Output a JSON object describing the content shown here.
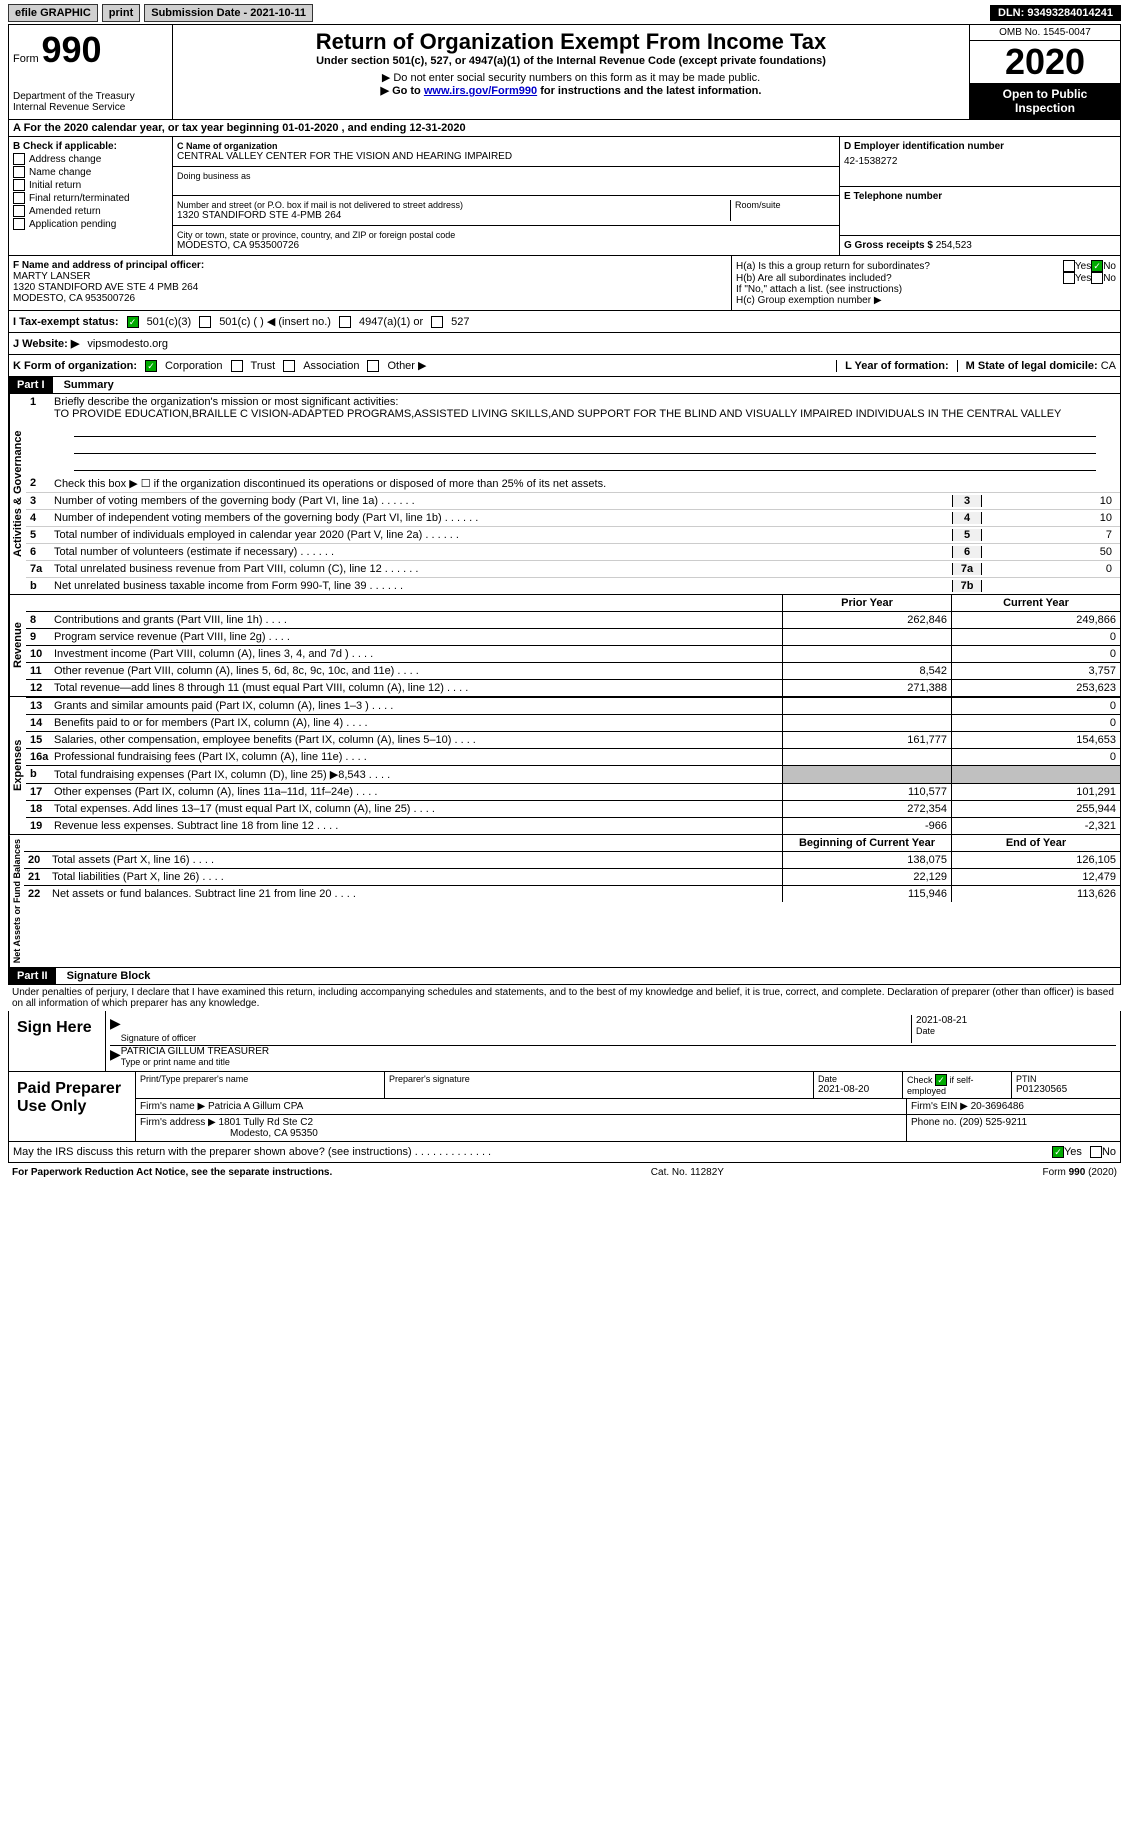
{
  "topbar": {
    "efile": "efile GRAPHIC",
    "print": "print",
    "submission_label": "Submission Date - ",
    "submission_date": "2021-10-11",
    "dln_label": "DLN: ",
    "dln": "93493284014241"
  },
  "header": {
    "form_word": "Form",
    "form_num": "990",
    "dept": "Department of the Treasury Internal Revenue Service",
    "title": "Return of Organization Exempt From Income Tax",
    "subtitle": "Under section 501(c), 527, or 4947(a)(1) of the Internal Revenue Code (except private foundations)",
    "note1": "▶ Do not enter social security numbers on this form as it may be made public.",
    "note2_pre": "▶ Go to ",
    "note2_link": "www.irs.gov/Form990",
    "note2_post": " for instructions and the latest information.",
    "omb": "OMB No. 1545-0047",
    "year": "2020",
    "open": "Open to Public Inspection"
  },
  "period": "A For the 2020 calendar year, or tax year beginning 01-01-2020   , and ending 12-31-2020",
  "sectionB": {
    "b_label": "B Check if applicable:",
    "items": [
      "Address change",
      "Name change",
      "Initial return",
      "Final return/terminated",
      "Amended return",
      "Application pending"
    ],
    "c_label": "C Name of organization",
    "org_name": "CENTRAL VALLEY CENTER FOR THE VISION AND HEARING IMPAIRED",
    "dba_label": "Doing business as",
    "street_label": "Number and street (or P.O. box if mail is not delivered to street address)",
    "street": "1320 STANDIFORD STE 4-PMB 264",
    "room_label": "Room/suite",
    "city_label": "City or town, state or province, country, and ZIP or foreign postal code",
    "city": "MODESTO, CA  953500726",
    "d_label": "D Employer identification number",
    "ein": "42-1538272",
    "e_label": "E Telephone number",
    "g_label": "G Gross receipts $ ",
    "g_value": "254,523"
  },
  "fgh": {
    "f_label": "F Name and address of principal officer:",
    "officer_name": "MARTY LANSER",
    "officer_addr1": "1320 STANDIFORD AVE STE 4 PMB 264",
    "officer_addr2": "MODESTO, CA  953500726",
    "ha_label": "H(a)  Is this a group return for subordinates?",
    "hb_label": "H(b)  Are all subordinates included?",
    "hb_note": "If \"No,\" attach a list. (see instructions)",
    "hc_label": "H(c)  Group exemption number ▶",
    "yes": "Yes",
    "no": "No"
  },
  "tax_status": {
    "i_label": "I   Tax-exempt status:",
    "s501c3": "501(c)(3)",
    "s501c": "501(c) (   ) ◀ (insert no.)",
    "s4947": "4947(a)(1) or",
    "s527": "527"
  },
  "website": {
    "j_label": "J   Website: ▶",
    "url": "vipsmodesto.org"
  },
  "form_org": {
    "k_label": "K Form of organization:",
    "corp": "Corporation",
    "trust": "Trust",
    "assoc": "Association",
    "other": "Other ▶",
    "l_label": "L Year of formation:",
    "m_label": "M State of legal domicile: ",
    "m_val": "CA"
  },
  "part1": {
    "header": "Part I",
    "title": "Summary",
    "line1_label": "Briefly describe the organization's mission or most significant activities:",
    "line1_text": "TO PROVIDE EDUCATION,BRAILLE C VISION-ADAPTED PROGRAMS,ASSISTED LIVING SKILLS,AND SUPPORT FOR THE BLIND AND VISUALLY IMPAIRED INDIVIDUALS IN THE CENTRAL VALLEY",
    "line2": "Check this box ▶ ☐ if the organization discontinued its operations or disposed of more than 25% of its net assets.",
    "rows_gov": [
      {
        "n": "3",
        "t": "Number of voting members of the governing body (Part VI, line 1a)",
        "box": "3",
        "v": "10"
      },
      {
        "n": "4",
        "t": "Number of independent voting members of the governing body (Part VI, line 1b)",
        "box": "4",
        "v": "10"
      },
      {
        "n": "5",
        "t": "Total number of individuals employed in calendar year 2020 (Part V, line 2a)",
        "box": "5",
        "v": "7"
      },
      {
        "n": "6",
        "t": "Total number of volunteers (estimate if necessary)",
        "box": "6",
        "v": "50"
      },
      {
        "n": "7a",
        "t": "Total unrelated business revenue from Part VIII, column (C), line 12",
        "box": "7a",
        "v": "0"
      },
      {
        "n": "b",
        "t": "Net unrelated business taxable income from Form 990-T, line 39",
        "box": "7b",
        "v": ""
      }
    ],
    "prior_label": "Prior Year",
    "current_label": "Current Year",
    "boy_label": "Beginning of Current Year",
    "eoy_label": "End of Year",
    "revenue": [
      {
        "n": "8",
        "t": "Contributions and grants (Part VIII, line 1h)",
        "p": "262,846",
        "c": "249,866"
      },
      {
        "n": "9",
        "t": "Program service revenue (Part VIII, line 2g)",
        "p": "",
        "c": "0"
      },
      {
        "n": "10",
        "t": "Investment income (Part VIII, column (A), lines 3, 4, and 7d )",
        "p": "",
        "c": "0"
      },
      {
        "n": "11",
        "t": "Other revenue (Part VIII, column (A), lines 5, 6d, 8c, 9c, 10c, and 11e)",
        "p": "8,542",
        "c": "3,757"
      },
      {
        "n": "12",
        "t": "Total revenue—add lines 8 through 11 (must equal Part VIII, column (A), line 12)",
        "p": "271,388",
        "c": "253,623"
      }
    ],
    "expenses": [
      {
        "n": "13",
        "t": "Grants and similar amounts paid (Part IX, column (A), lines 1–3 )",
        "p": "",
        "c": "0"
      },
      {
        "n": "14",
        "t": "Benefits paid to or for members (Part IX, column (A), line 4)",
        "p": "",
        "c": "0"
      },
      {
        "n": "15",
        "t": "Salaries, other compensation, employee benefits (Part IX, column (A), lines 5–10)",
        "p": "161,777",
        "c": "154,653"
      },
      {
        "n": "16a",
        "t": "Professional fundraising fees (Part IX, column (A), line 11e)",
        "p": "",
        "c": "0"
      },
      {
        "n": "b",
        "t": "Total fundraising expenses (Part IX, column (D), line 25) ▶8,543",
        "p": "GRAY",
        "c": "GRAY"
      },
      {
        "n": "17",
        "t": "Other expenses (Part IX, column (A), lines 11a–11d, 11f–24e)",
        "p": "110,577",
        "c": "101,291"
      },
      {
        "n": "18",
        "t": "Total expenses. Add lines 13–17 (must equal Part IX, column (A), line 25)",
        "p": "272,354",
        "c": "255,944"
      },
      {
        "n": "19",
        "t": "Revenue less expenses. Subtract line 18 from line 12",
        "p": "-966",
        "c": "-2,321"
      }
    ],
    "netassets": [
      {
        "n": "20",
        "t": "Total assets (Part X, line 16)",
        "p": "138,075",
        "c": "126,105"
      },
      {
        "n": "21",
        "t": "Total liabilities (Part X, line 26)",
        "p": "22,129",
        "c": "12,479"
      },
      {
        "n": "22",
        "t": "Net assets or fund balances. Subtract line 21 from line 20",
        "p": "115,946",
        "c": "113,626"
      }
    ],
    "vert_gov": "Activities & Governance",
    "vert_rev": "Revenue",
    "vert_exp": "Expenses",
    "vert_net": "Net Assets or Fund Balances"
  },
  "part2": {
    "header": "Part II",
    "title": "Signature Block",
    "declaration": "Under penalties of perjury, I declare that I have examined this return, including accompanying schedules and statements, and to the best of my knowledge and belief, it is true, correct, and complete. Declaration of preparer (other than officer) is based on all information of which preparer has any knowledge.",
    "sign_here": "Sign Here",
    "sig_officer": "Signature of officer",
    "sig_date": "2021-08-21",
    "date_label": "Date",
    "name_title": "PATRICIA GILLUM  TREASURER",
    "type_label": "Type or print name and title"
  },
  "preparer": {
    "label": "Paid Preparer Use Only",
    "print_label": "Print/Type preparer's name",
    "sig_label": "Preparer's signature",
    "date_label": "Date",
    "date": "2021-08-20",
    "check_label": "Check ☑ if self-employed",
    "ptin_label": "PTIN",
    "ptin": "P01230565",
    "firm_name_label": "Firm's name     ▶",
    "firm_name": "Patricia A Gillum CPA",
    "firm_ein_label": "Firm's EIN ▶",
    "firm_ein": "20-3696486",
    "firm_addr_label": "Firm's address ▶",
    "firm_addr1": "1801 Tully Rd Ste C2",
    "firm_addr2": "Modesto, CA  95350",
    "phone_label": "Phone no. ",
    "phone": "(209) 525-9211"
  },
  "discuss": {
    "text": "May the IRS discuss this return with the preparer shown above? (see instructions)",
    "yes": "Yes",
    "no": "No"
  },
  "footer": {
    "left": "For Paperwork Reduction Act Notice, see the separate instructions.",
    "mid": "Cat. No. 11282Y",
    "right": "Form 990 (2020)"
  }
}
